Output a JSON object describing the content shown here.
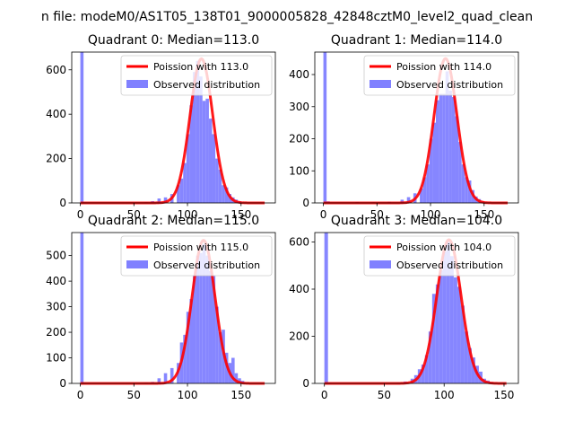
{
  "figure_title": "n file: modeM0/AS1T05_138T01_9000005828_42848cztM0_level2_quad_clean",
  "chart_data": [
    {
      "type": "bar",
      "title": "Quadrant 0: Median=113.0",
      "median": 113.0,
      "xlim": [
        -8,
        182
      ],
      "ylim": [
        0,
        680
      ],
      "xticks": [
        0,
        50,
        100,
        150
      ],
      "yticks": [
        0,
        200,
        400,
        600
      ],
      "legend_position": "top-right",
      "series": [
        {
          "name": "Poission with 113.0",
          "kind": "line",
          "color": "#ff0000",
          "lambda": 113.0,
          "peak": 650
        },
        {
          "name": "Observed distribution",
          "kind": "histogram",
          "color": "#8080ff",
          "bin_width": 3,
          "bins": [
            [
              0,
              680
            ],
            [
              3,
              2
            ],
            [
              60,
              3
            ],
            [
              66,
              8
            ],
            [
              72,
              20
            ],
            [
              78,
              25
            ],
            [
              84,
              40
            ],
            [
              90,
              80
            ],
            [
              93,
              110
            ],
            [
              96,
              180
            ],
            [
              99,
              310
            ],
            [
              102,
              440
            ],
            [
              105,
              590
            ],
            [
              108,
              640
            ],
            [
              111,
              570
            ],
            [
              114,
              460
            ],
            [
              117,
              470
            ],
            [
              120,
              380
            ],
            [
              123,
              310
            ],
            [
              126,
              200
            ],
            [
              129,
              150
            ],
            [
              132,
              80
            ],
            [
              135,
              70
            ],
            [
              138,
              40
            ],
            [
              141,
              25
            ],
            [
              144,
              15
            ],
            [
              147,
              8
            ]
          ]
        }
      ]
    },
    {
      "type": "bar",
      "title": "Quadrant 1: Median=114.0",
      "median": 114.0,
      "xlim": [
        -8,
        182
      ],
      "ylim": [
        0,
        470
      ],
      "xticks": [
        0,
        50,
        100,
        150
      ],
      "yticks": [
        0,
        100,
        200,
        300,
        400
      ],
      "legend_position": "top-right",
      "series": [
        {
          "name": "Poission with 114.0",
          "kind": "line",
          "color": "#ff0000",
          "lambda": 114.0,
          "peak": 450
        },
        {
          "name": "Observed distribution",
          "kind": "histogram",
          "color": "#8080ff",
          "bin_width": 3,
          "bins": [
            [
              0,
              470
            ],
            [
              3,
              5
            ],
            [
              30,
              3
            ],
            [
              45,
              2
            ],
            [
              60,
              4
            ],
            [
              72,
              10
            ],
            [
              78,
              18
            ],
            [
              84,
              30
            ],
            [
              90,
              45
            ],
            [
              93,
              80
            ],
            [
              96,
              120
            ],
            [
              99,
              200
            ],
            [
              102,
              250
            ],
            [
              105,
              320
            ],
            [
              108,
              340
            ],
            [
              111,
              340
            ],
            [
              114,
              410
            ],
            [
              117,
              350
            ],
            [
              120,
              330
            ],
            [
              123,
              270
            ],
            [
              126,
              190
            ],
            [
              129,
              120
            ],
            [
              132,
              80
            ],
            [
              135,
              70
            ],
            [
              138,
              40
            ],
            [
              141,
              20
            ],
            [
              144,
              12
            ],
            [
              147,
              5
            ]
          ]
        }
      ]
    },
    {
      "type": "bar",
      "title": "Quadrant 2: Median=115.0",
      "median": 115.0,
      "xlim": [
        -8,
        182
      ],
      "ylim": [
        0,
        590
      ],
      "xticks": [
        0,
        50,
        100,
        150
      ],
      "yticks": [
        0,
        100,
        200,
        300,
        400,
        500
      ],
      "legend_position": "top-right",
      "series": [
        {
          "name": "Poission with 115.0",
          "kind": "line",
          "color": "#ff0000",
          "lambda": 115.0,
          "peak": 560
        },
        {
          "name": "Observed distribution",
          "kind": "histogram",
          "color": "#8080ff",
          "bin_width": 3,
          "bins": [
            [
              0,
              590
            ],
            [
              3,
              2
            ],
            [
              60,
              3
            ],
            [
              66,
              6
            ],
            [
              72,
              20
            ],
            [
              78,
              40
            ],
            [
              84,
              60
            ],
            [
              90,
              80
            ],
            [
              93,
              160
            ],
            [
              96,
              190
            ],
            [
              99,
              280
            ],
            [
              102,
              330
            ],
            [
              105,
              420
            ],
            [
              108,
              500
            ],
            [
              111,
              510
            ],
            [
              114,
              545
            ],
            [
              117,
              500
            ],
            [
              120,
              440
            ],
            [
              123,
              420
            ],
            [
              126,
              300
            ],
            [
              129,
              200
            ],
            [
              132,
              210
            ],
            [
              135,
              120
            ],
            [
              138,
              80
            ],
            [
              141,
              100
            ],
            [
              144,
              40
            ],
            [
              147,
              20
            ],
            [
              150,
              10
            ]
          ]
        }
      ]
    },
    {
      "type": "bar",
      "title": "Quadrant 3: Median=104.0",
      "median": 104.0,
      "xlim": [
        -8,
        162
      ],
      "ylim": [
        0,
        640
      ],
      "xticks": [
        0,
        50,
        100,
        150
      ],
      "yticks": [
        0,
        200,
        400,
        600
      ],
      "legend_position": "top-right",
      "series": [
        {
          "name": "Poission with 104.0",
          "kind": "line",
          "color": "#ff0000",
          "lambda": 104.0,
          "peak": 610
        },
        {
          "name": "Observed distribution",
          "kind": "histogram",
          "color": "#8080ff",
          "bin_width": 3,
          "bins": [
            [
              0,
              640
            ],
            [
              3,
              3
            ],
            [
              45,
              2
            ],
            [
              60,
              3
            ],
            [
              66,
              8
            ],
            [
              72,
              20
            ],
            [
              75,
              35
            ],
            [
              78,
              60
            ],
            [
              81,
              80
            ],
            [
              84,
              120
            ],
            [
              87,
              220
            ],
            [
              90,
              380
            ],
            [
              93,
              420
            ],
            [
              96,
              480
            ],
            [
              99,
              560
            ],
            [
              102,
              600
            ],
            [
              105,
              540
            ],
            [
              108,
              450
            ],
            [
              111,
              410
            ],
            [
              114,
              330
            ],
            [
              117,
              220
            ],
            [
              120,
              150
            ],
            [
              123,
              110
            ],
            [
              126,
              75
            ],
            [
              129,
              50
            ],
            [
              132,
              20
            ],
            [
              135,
              12
            ],
            [
              138,
              5
            ]
          ]
        }
      ]
    }
  ]
}
